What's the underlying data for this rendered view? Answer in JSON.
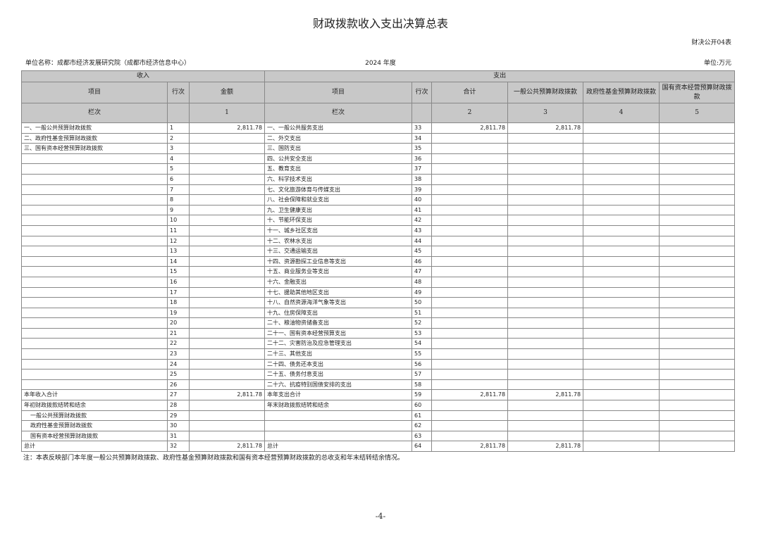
{
  "title": "财政拨款收入支出决算总表",
  "form_code": "财决公开04表",
  "unit_name": "单位名称：成都市经济发展研究院（成都市经济信息中心）",
  "year": "2024 年度",
  "unit": "单位:万元",
  "table": {
    "group_headers": [
      "收入",
      "支出"
    ],
    "headers": [
      "项目",
      "行次",
      "金额",
      "项目",
      "行次",
      "合计",
      "一般公共预算财政拨款",
      "政府性基金预算财政拨款",
      "国有资本经营预算财政拨款"
    ],
    "column_numbers": [
      "栏次",
      null,
      "1",
      "栏次",
      null,
      "2",
      "3",
      "4",
      "5"
    ],
    "rows": [
      [
        "一、一般公共预算财政拨款",
        "1",
        "2,811.78",
        "一、一般公共服务支出",
        "33",
        "2,811.78",
        "2,811.78",
        null,
        null
      ],
      [
        "二、政府性基金预算财政拨款",
        "2",
        null,
        "二、外交支出",
        "34",
        null,
        null,
        null,
        null
      ],
      [
        "三、国有资本经营预算财政拨款",
        "3",
        null,
        "三、国防支出",
        "35",
        null,
        null,
        null,
        null
      ],
      [
        null,
        "4",
        null,
        "四、公共安全支出",
        "36",
        null,
        null,
        null,
        null
      ],
      [
        null,
        "5",
        null,
        "五、教育支出",
        "37",
        null,
        null,
        null,
        null
      ],
      [
        null,
        "6",
        null,
        "六、科学技术支出",
        "38",
        null,
        null,
        null,
        null
      ],
      [
        null,
        "7",
        null,
        "七、文化旅游体育与传媒支出",
        "39",
        null,
        null,
        null,
        null
      ],
      [
        null,
        "8",
        null,
        "八、社会保障和就业支出",
        "40",
        null,
        null,
        null,
        null
      ],
      [
        null,
        "9",
        null,
        "九、卫生健康支出",
        "41",
        null,
        null,
        null,
        null
      ],
      [
        null,
        "10",
        null,
        "十、节能环保支出",
        "42",
        null,
        null,
        null,
        null
      ],
      [
        null,
        "11",
        null,
        "十一、城乡社区支出",
        "43",
        null,
        null,
        null,
        null
      ],
      [
        null,
        "12",
        null,
        "十二、农林水支出",
        "44",
        null,
        null,
        null,
        null
      ],
      [
        null,
        "13",
        null,
        "十三、交通运输支出",
        "45",
        null,
        null,
        null,
        null
      ],
      [
        null,
        "14",
        null,
        "十四、资源勘探工业信息等支出",
        "46",
        null,
        null,
        null,
        null
      ],
      [
        null,
        "15",
        null,
        "十五、商业服务业等支出",
        "47",
        null,
        null,
        null,
        null
      ],
      [
        null,
        "16",
        null,
        "十六、金融支出",
        "48",
        null,
        null,
        null,
        null
      ],
      [
        null,
        "17",
        null,
        "十七、援助其他地区支出",
        "49",
        null,
        null,
        null,
        null
      ],
      [
        null,
        "18",
        null,
        "十八、自然资源海洋气象等支出",
        "50",
        null,
        null,
        null,
        null
      ],
      [
        null,
        "19",
        null,
        "十九、住房保障支出",
        "51",
        null,
        null,
        null,
        null
      ],
      [
        null,
        "20",
        null,
        "二十、粮油物资储备支出",
        "52",
        null,
        null,
        null,
        null
      ],
      [
        null,
        "21",
        null,
        "二十一、国有资本经营预算支出",
        "53",
        null,
        null,
        null,
        null
      ],
      [
        null,
        "22",
        null,
        "二十二、灾害防治及应急管理支出",
        "54",
        null,
        null,
        null,
        null
      ],
      [
        null,
        "23",
        null,
        "二十三、其他支出",
        "55",
        null,
        null,
        null,
        null
      ],
      [
        null,
        "24",
        null,
        "二十四、债务还本支出",
        "56",
        null,
        null,
        null,
        null
      ],
      [
        null,
        "25",
        null,
        "二十五、债务付息支出",
        "57",
        null,
        null,
        null,
        null
      ],
      [
        null,
        "26",
        null,
        "二十六、抗疫特别国债安排的支出",
        "58",
        null,
        null,
        null,
        null
      ],
      [
        "本年收入合计",
        "27",
        "2,811.78",
        "本年支出合计",
        "59",
        "2,811.78",
        "2,811.78",
        null,
        null
      ],
      [
        "年初财政拨款结转和结余",
        "28",
        null,
        "年末财政拨款结转和结余",
        "60",
        null,
        null,
        null,
        null
      ],
      [
        "一般公共预算财政拨款",
        "29",
        null,
        null,
        "61",
        null,
        null,
        null,
        null
      ],
      [
        "政府性基金预算财政拨款",
        "30",
        null,
        null,
        "62",
        null,
        null,
        null,
        null
      ],
      [
        "国有资本经营预算财政拨款",
        "31",
        null,
        null,
        "63",
        null,
        null,
        null,
        null
      ],
      [
        "总计",
        "32",
        "2,811.78",
        "总计",
        "64",
        "2,811.78",
        "2,811.78",
        null,
        null
      ]
    ]
  },
  "note": "注：本表反映部门本年度一般公共预算财政拨款、政府性基金预算财政拨款和国有资本经营预算财政拨款的总收支和年末结转结余情况。",
  "page_number": "-4-"
}
